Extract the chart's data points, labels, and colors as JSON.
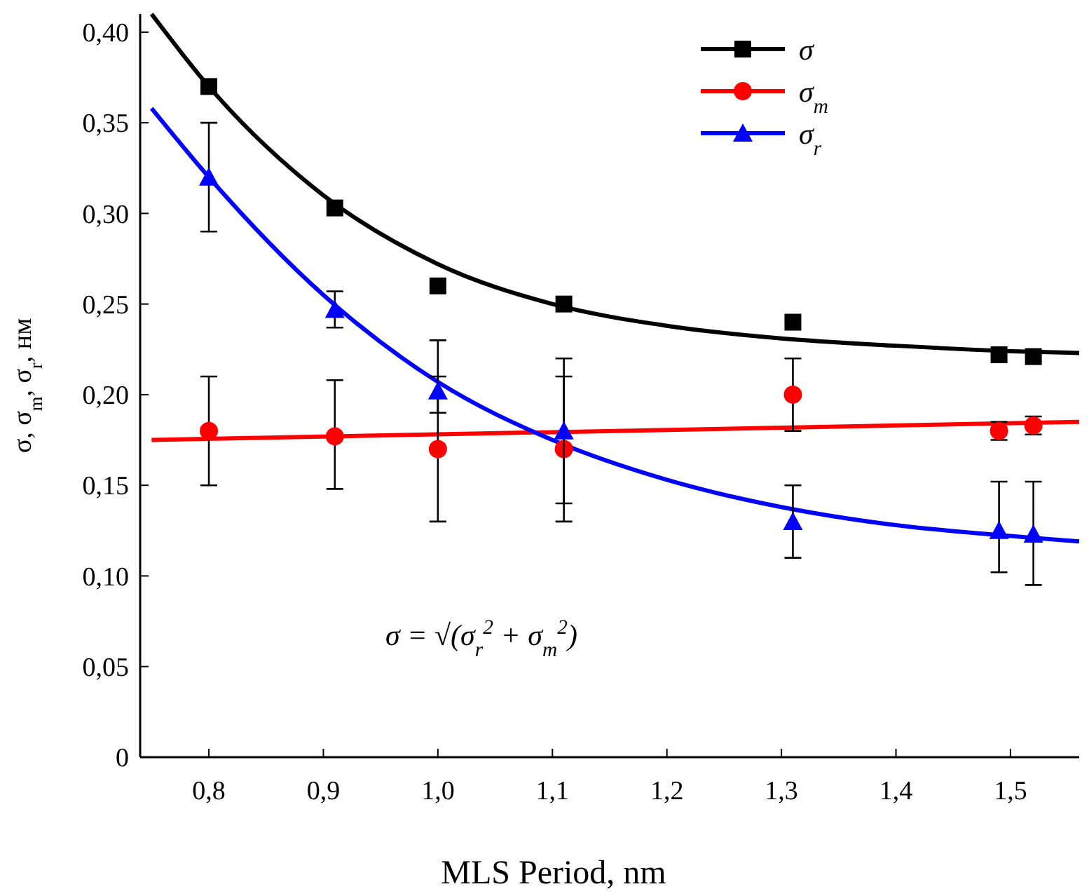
{
  "chart_data": {
    "type": "scatter",
    "xlabel": "MLS Period, nm",
    "ylabel": "σ, σ$_{m}$, σ$_{r}$, нм",
    "xlim": [
      0.74,
      1.56
    ],
    "ylim": [
      0,
      0.41
    ],
    "xticks": [
      {
        "value": 0.8,
        "label": "0,8"
      },
      {
        "value": 0.9,
        "label": "0,9"
      },
      {
        "value": 1.0,
        "label": "1,0"
      },
      {
        "value": 1.1,
        "label": "1,1"
      },
      {
        "value": 1.2,
        "label": "1,2"
      },
      {
        "value": 1.3,
        "label": "1,3"
      },
      {
        "value": 1.4,
        "label": "1,4"
      },
      {
        "value": 1.5,
        "label": "1,5"
      }
    ],
    "yticks": [
      0,
      {
        "value": 0.05,
        "label": "0,05"
      },
      {
        "value": 0.1,
        "label": "0,10"
      },
      {
        "value": 0.15,
        "label": "0,15"
      },
      {
        "value": 0.2,
        "label": "0,20"
      },
      {
        "value": 0.25,
        "label": "0,25"
      },
      {
        "value": 0.3,
        "label": "0,30"
      },
      {
        "value": 0.35,
        "label": "0,35"
      },
      {
        "value": 0.4,
        "label": "0,40"
      }
    ],
    "grid": false,
    "legend": "top right",
    "annotations": [
      "σ = √(σ$_{r}$$^{2}$ + σ$_{m}$$^{2}$)"
    ],
    "series": [
      {
        "type": "line",
        "color": "#000000",
        "x": [
          0.75,
          0.8,
          0.9,
          1.0,
          1.1,
          1.2,
          1.3,
          1.4,
          1.5,
          1.56
        ],
        "values": [
          0.41,
          0.37,
          0.31,
          0.272,
          0.25,
          0.238,
          0.231,
          0.227,
          0.224,
          0.223
        ]
      },
      {
        "type": "line",
        "color": "#ff0000",
        "x": [
          0.75,
          1.56
        ],
        "values": [
          0.175,
          0.185
        ]
      },
      {
        "type": "line",
        "color": "#0000ff",
        "x": [
          0.75,
          0.8,
          0.9,
          1.0,
          1.1,
          1.2,
          1.3,
          1.4,
          1.5,
          1.56
        ],
        "values": [
          0.358,
          0.32,
          0.255,
          0.207,
          0.175,
          0.153,
          0.138,
          0.128,
          0.122,
          0.119
        ]
      },
      {
        "name": "σ",
        "color": "#000000",
        "marker": "square",
        "x": [
          0.8,
          0.91,
          1.0,
          1.11,
          1.31,
          1.49,
          1.52
        ],
        "values": [
          0.37,
          0.303,
          0.26,
          0.25,
          0.24,
          0.222,
          0.221
        ]
      },
      {
        "name": "σ$_{m}$",
        "color": "#ff0000",
        "marker": "circle",
        "x": [
          0.8,
          0.91,
          1.0,
          1.11,
          1.31,
          1.49,
          1.52
        ],
        "values": [
          0.18,
          0.177,
          0.17,
          0.17,
          0.2,
          0.18,
          0.183
        ],
        "errors": [
          [
            0.15,
            0.21
          ],
          [
            0.148,
            0.208
          ],
          [
            0.13,
            0.23
          ],
          [
            0.13,
            0.21
          ],
          [
            0.18,
            0.22
          ],
          [
            0.175,
            0.185
          ],
          [
            0.178,
            0.188
          ]
        ]
      },
      {
        "name": "σ$_{r}$",
        "color": "#0000ff",
        "marker": "triangle",
        "x": [
          0.8,
          0.91,
          1.0,
          1.11,
          1.31,
          1.49,
          1.52
        ],
        "values": [
          0.32,
          0.247,
          0.202,
          0.18,
          0.13,
          0.125,
          0.123
        ],
        "errors": [
          [
            0.29,
            0.35
          ],
          [
            0.237,
            0.257
          ],
          [
            0.19,
            0.21
          ],
          [
            0.14,
            0.22
          ],
          [
            0.11,
            0.15
          ],
          [
            0.102,
            0.152
          ],
          [
            0.095,
            0.152
          ]
        ]
      }
    ]
  }
}
